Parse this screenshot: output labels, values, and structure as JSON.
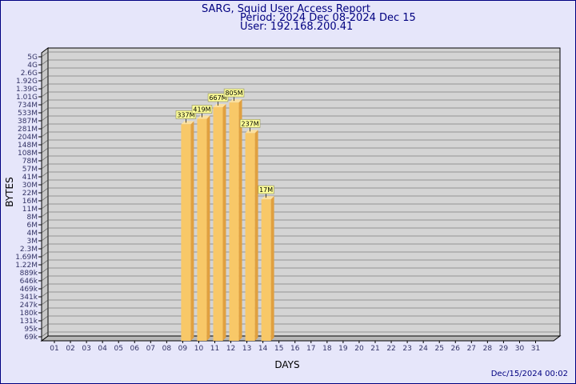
{
  "header": {
    "title": "SARG, Squid User Access Report",
    "period": "Period: 2024 Dec 08-2024 Dec 15",
    "user": "User: 192.168.200.41"
  },
  "footer": {
    "timestamp": "Dec/15/2024 00:02"
  },
  "chart_data": {
    "type": "bar",
    "xlabel": "DAYS",
    "ylabel": "BYTES",
    "y_scale": "log",
    "grid": true,
    "categories": [
      "01",
      "02",
      "03",
      "04",
      "05",
      "06",
      "07",
      "08",
      "09",
      "10",
      "11",
      "12",
      "13",
      "14",
      "15",
      "16",
      "17",
      "18",
      "19",
      "20",
      "21",
      "22",
      "23",
      "24",
      "25",
      "26",
      "27",
      "28",
      "29",
      "30",
      "31"
    ],
    "y_ticks": [
      "5G",
      "4G",
      "2.6G",
      "1.92G",
      "1.39G",
      "1.01G",
      "734M",
      "533M",
      "387M",
      "281M",
      "204M",
      "148M",
      "108M",
      "78M",
      "57M",
      "41M",
      "30M",
      "22M",
      "16M",
      "11M",
      "8M",
      "6M",
      "4M",
      "3M",
      "2.3M",
      "1.69M",
      "1.22M",
      "889k",
      "646k",
      "469k",
      "341k",
      "247k",
      "180k",
      "131k",
      "95k",
      "69k"
    ],
    "bars": [
      {
        "day": "09",
        "label": "337M",
        "value": 337000000
      },
      {
        "day": "10",
        "label": "419M",
        "value": 419000000
      },
      {
        "day": "11",
        "label": "667M",
        "value": 667000000
      },
      {
        "day": "12",
        "label": "805M",
        "value": 805000000
      },
      {
        "day": "13",
        "label": "237M",
        "value": 237000000
      },
      {
        "day": "14",
        "label": "17M",
        "value": 17000000
      }
    ],
    "colors": {
      "bar": "#f8c868",
      "bar_side": "#e0a040",
      "plot_bg": "#d4d4d4",
      "label_bg": "#ffff99"
    }
  }
}
